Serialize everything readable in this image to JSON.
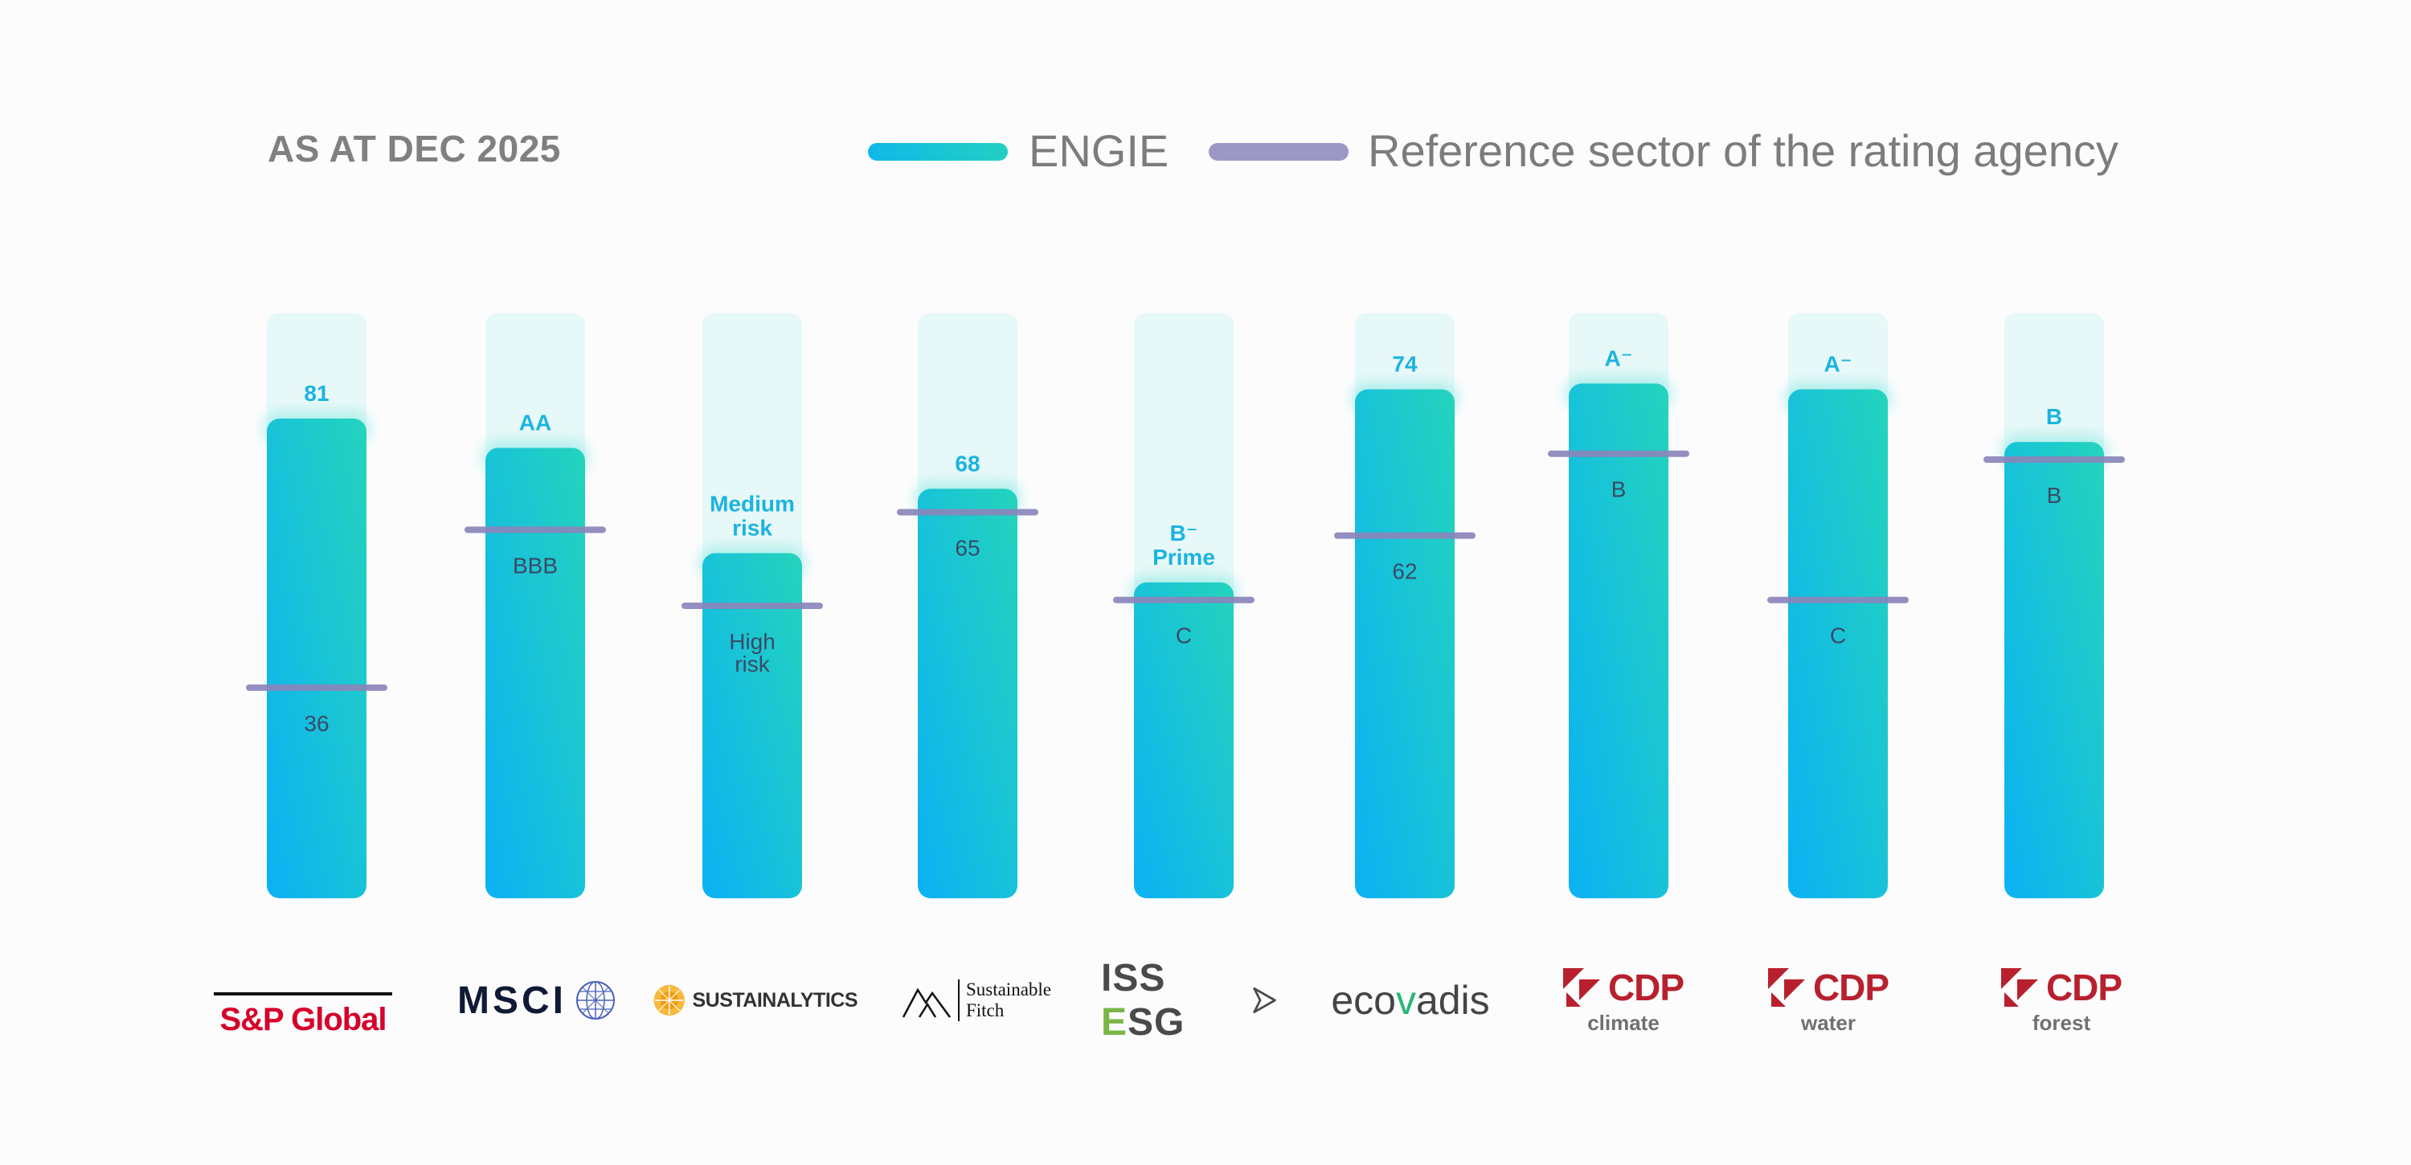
{
  "header": {
    "title": "AS AT DEC 2025",
    "legend": [
      {
        "name": "ENGIE",
        "color": "#1fc3d3"
      },
      {
        "name": "Reference sector of the rating agency",
        "color": "#9b98c6"
      }
    ]
  },
  "chart_data": {
    "type": "bar",
    "title": "AS AT DEC 2025",
    "ylim": [
      0,
      100
    ],
    "value_scale": "normalized position (0 = bar base, 100 = column top)",
    "categories": [
      "S&P Global",
      "MSCI",
      "SUSTAINALYTICS",
      "Sustainable Fitch",
      "ISS ESG",
      "ecovadis",
      "CDP climate",
      "CDP water",
      "CDP forest"
    ],
    "series": [
      {
        "name": "ENGIE",
        "values": [
          82,
          77,
          59,
          70,
          54,
          87,
          88,
          87,
          78
        ],
        "labels": [
          [
            "81"
          ],
          [
            "AA"
          ],
          [
            "Medium",
            "risk"
          ],
          [
            "68"
          ],
          [
            "B⁻",
            "Prime"
          ],
          [
            "74"
          ],
          [
            "A⁻"
          ],
          [
            "A⁻"
          ],
          [
            "B"
          ]
        ]
      },
      {
        "name": "Reference sector of the rating agency",
        "values": [
          36,
          63,
          50,
          66,
          51,
          62,
          76,
          51,
          75
        ],
        "labels": [
          [
            "36"
          ],
          [
            "BBB"
          ],
          [
            "High",
            "risk"
          ],
          [
            "65"
          ],
          [
            "C"
          ],
          [
            "62"
          ],
          [
            "B"
          ],
          [
            "C"
          ],
          [
            "B"
          ]
        ]
      }
    ]
  },
  "logos": [
    {
      "text": "S&P Global"
    },
    {
      "text": "MSCI"
    },
    {
      "text": "SUSTAINALYTICS"
    },
    {
      "text": "Sustainable Fitch",
      "lines": [
        "Sustainable",
        "Fitch"
      ]
    },
    {
      "text_a": "ISS ",
      "text_b": "E",
      "text_c": "SG",
      "accent": "#7ab648"
    },
    {
      "text_a": "eco",
      "text_b": "v",
      "text_c": "adis",
      "accent": "#2bb673"
    },
    {
      "text": "CDP",
      "sub": "climate"
    },
    {
      "text": "CDP",
      "sub": "water"
    },
    {
      "text": "CDP",
      "sub": "forest"
    }
  ]
}
